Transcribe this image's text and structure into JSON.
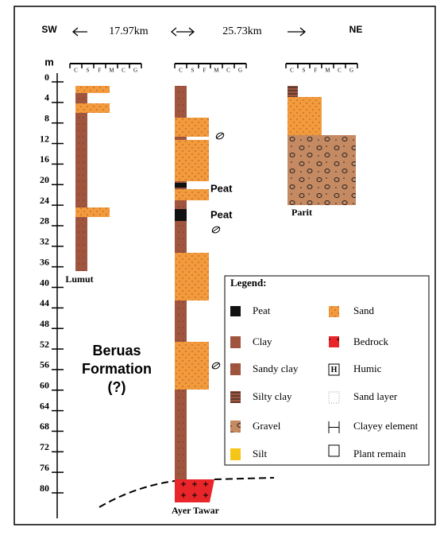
{
  "header": {
    "left": "SW",
    "distance_1": "17.97km",
    "distance_2": "25.73km",
    "right": "NE"
  },
  "depth_axis": {
    "label": "m",
    "ticks": [
      0,
      4,
      8,
      12,
      16,
      20,
      24,
      28,
      32,
      36,
      40,
      44,
      48,
      52,
      56,
      60,
      64,
      68,
      72,
      76,
      80
    ]
  },
  "grain_scale": [
    "C",
    "S",
    "F",
    "M",
    "C",
    "G"
  ],
  "columns": {
    "lumut": "Lumut",
    "ayer_tawar": "Ayer Tawar",
    "parit": "Parit"
  },
  "annotations": {
    "peat_1": "Peat",
    "peat_2": "Peat",
    "formation": [
      "Beruas",
      "Formation",
      "(?)"
    ]
  },
  "legend": {
    "title": "Legend:",
    "left": [
      "Peat",
      "Clay",
      "Sandy clay",
      "Silty clay",
      "Gravel",
      "Silt"
    ],
    "right": [
      "Sand",
      "Bedrock",
      "Humic",
      "Sand layer",
      "Clayey element",
      "Plant remain"
    ],
    "humic_symbol": "H"
  }
}
